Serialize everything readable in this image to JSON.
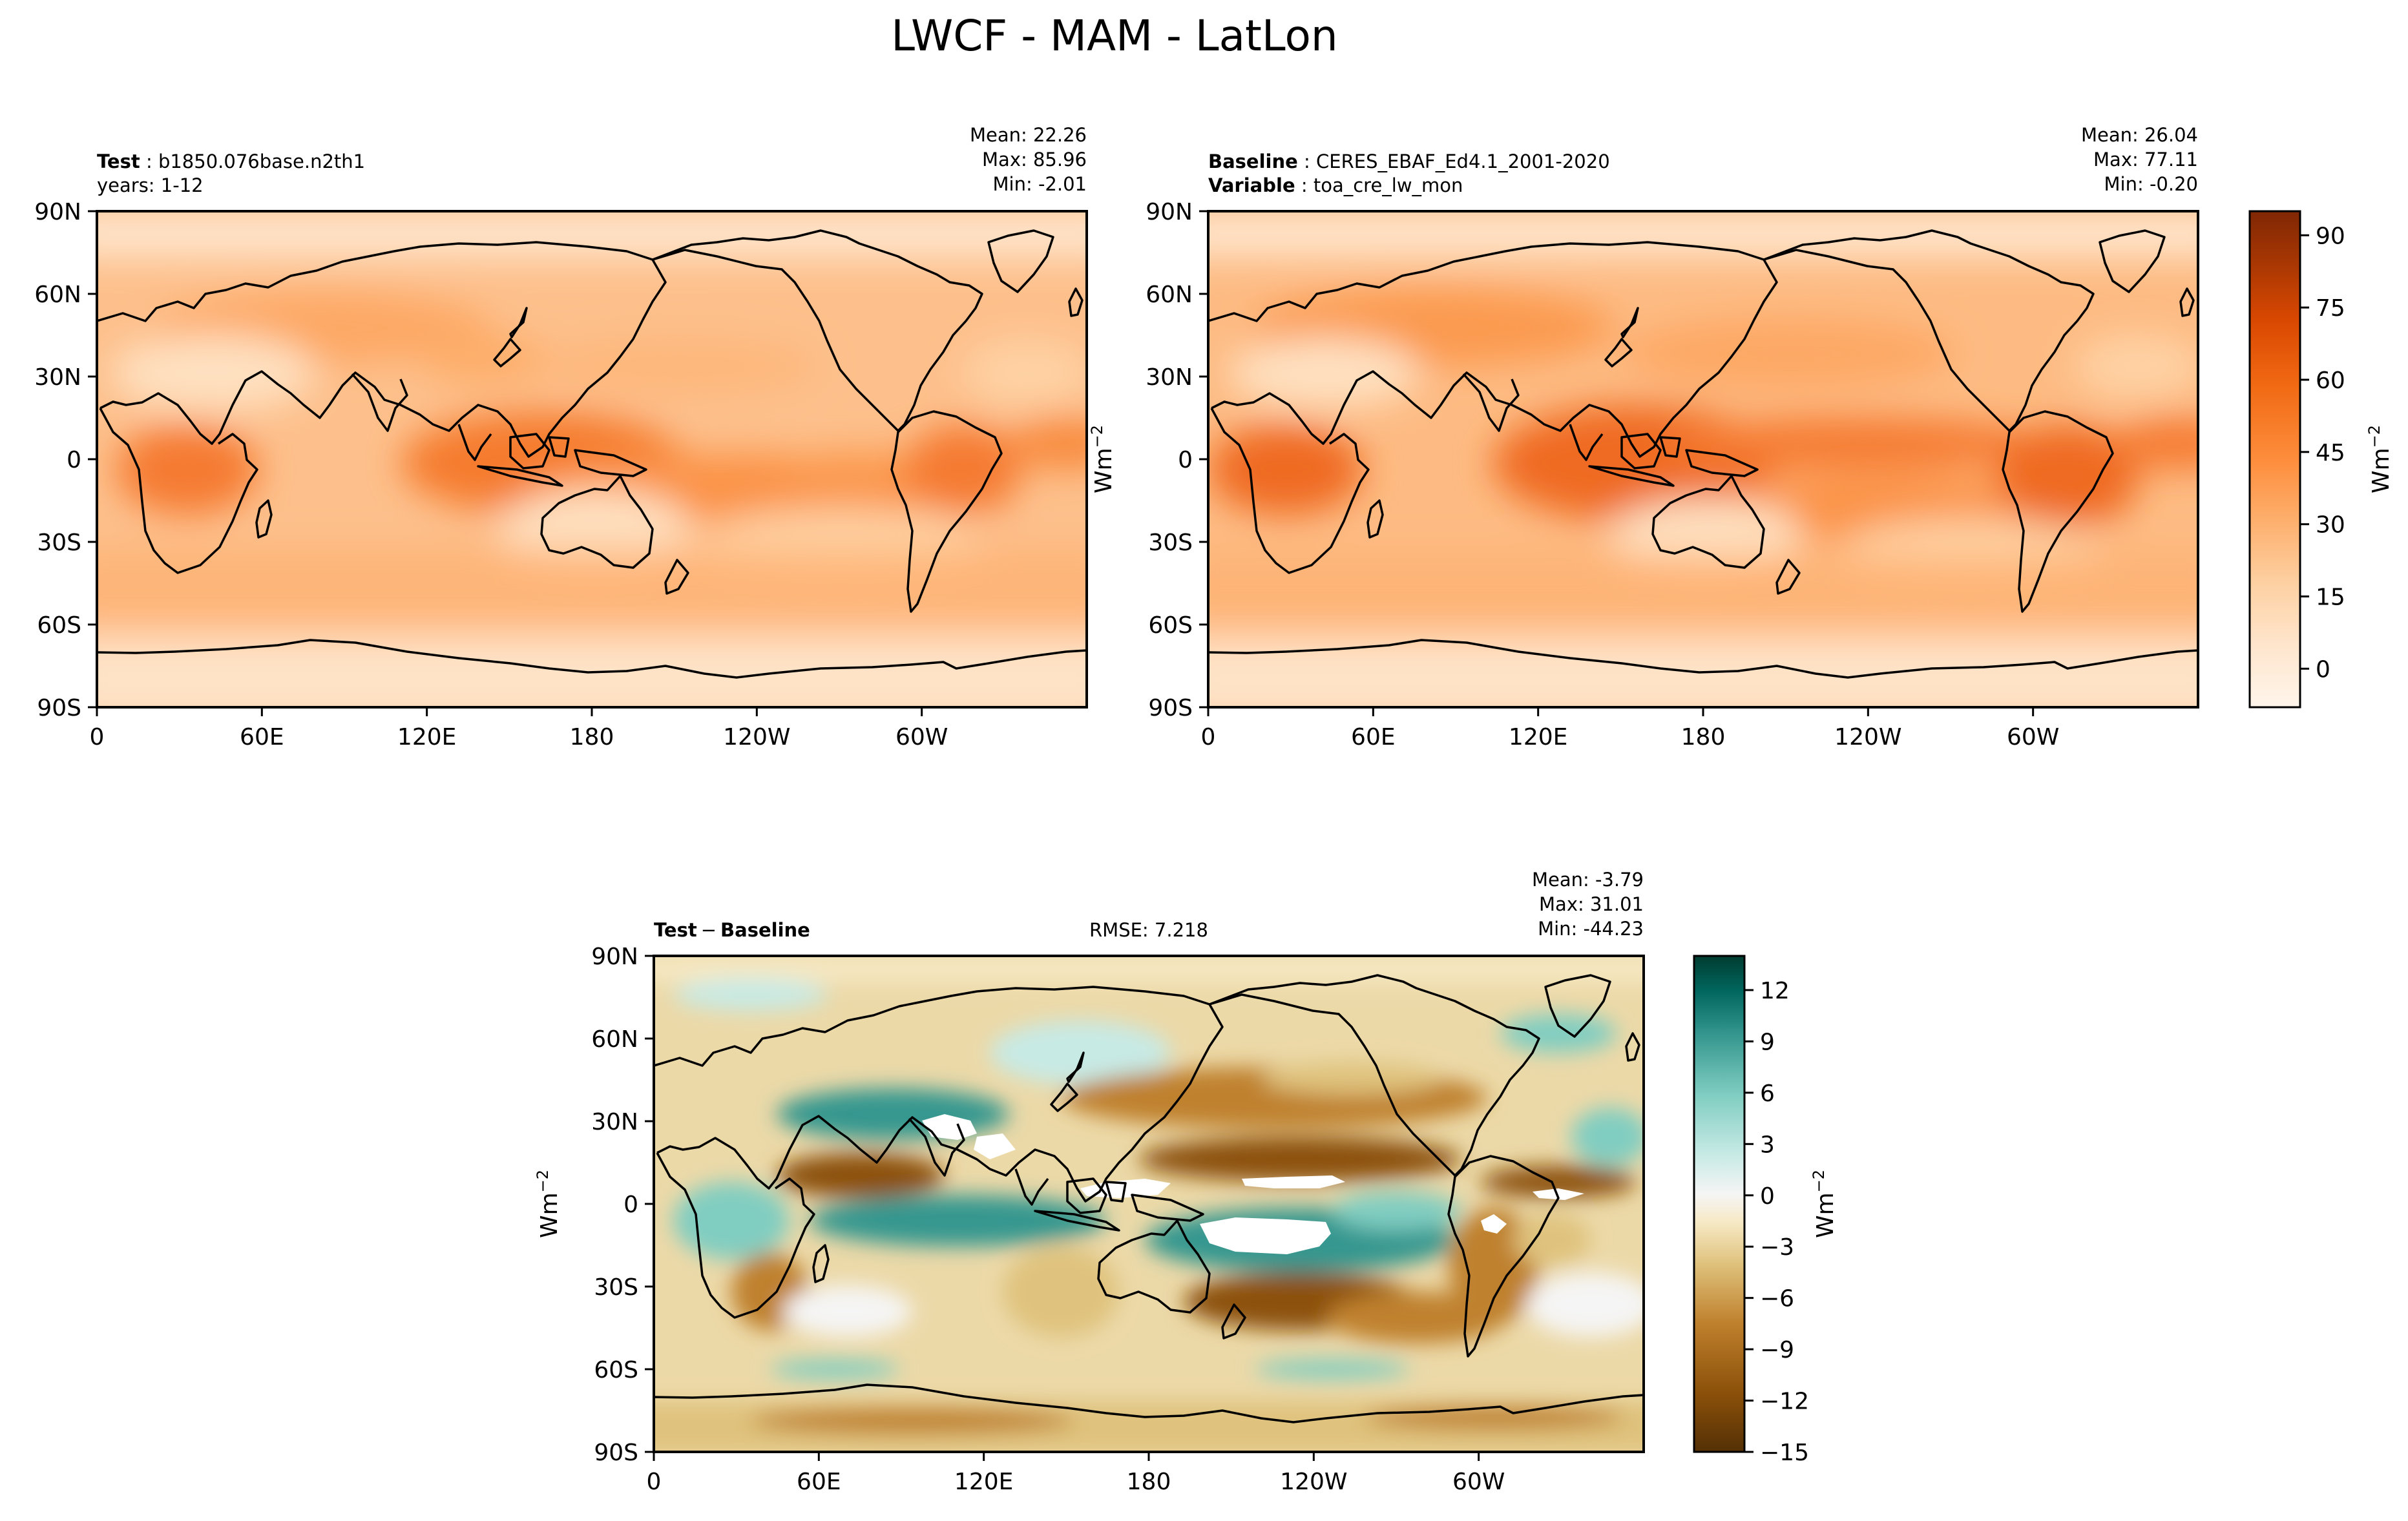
{
  "title": "LWCF - MAM - LatLon",
  "colors": {
    "test_cmap": [
      "#fff5eb",
      "#fee6ce",
      "#fdd0a2",
      "#fdae6b",
      "#fd8d3c",
      "#f16913",
      "#d94801",
      "#a63603",
      "#7f2704"
    ],
    "diff_cmap": [
      "#543005",
      "#8c510a",
      "#bf812d",
      "#dfc27d",
      "#f6e8c3",
      "#f5f5f5",
      "#c7eae5",
      "#80cdc1",
      "#35978f",
      "#01665e",
      "#003c30"
    ],
    "coast": "#000000"
  },
  "chart_data": [
    {
      "type": "heatmap",
      "id": "test",
      "header_left": [
        {
          "bold": "Test",
          "text": "b1850.076base.n2th1"
        },
        {
          "bold": "",
          "text": "years: 1-12"
        }
      ],
      "stats": [
        "Mean: 22.26",
        "Max: 85.96",
        "Min: -2.01"
      ],
      "xticks": [
        "0",
        "60E",
        "120E",
        "180",
        "120W",
        "60W"
      ],
      "yticks": [
        "90N",
        "60N",
        "30N",
        "0",
        "30S",
        "60S",
        "90S"
      ],
      "xlim": [
        0,
        360
      ],
      "ylim": [
        -90,
        90
      ],
      "value_range": [
        -8,
        95
      ],
      "ylabel": "",
      "summary": {
        "mean": 22.26,
        "max": 85.96,
        "min": -2.01
      }
    },
    {
      "type": "heatmap",
      "id": "baseline",
      "header_left": [
        {
          "bold": "Baseline",
          "text": "CERES_EBAF_Ed4.1_2001-2020"
        },
        {
          "bold": "Variable",
          "text": "toa_cre_lw_mon"
        }
      ],
      "stats": [
        "Mean: 26.04",
        "Max: 77.11",
        "Min: -0.20"
      ],
      "xticks": [
        "0",
        "60E",
        "120E",
        "180",
        "120W",
        "60W"
      ],
      "yticks": [
        "90N",
        "60N",
        "30N",
        "0",
        "30S",
        "60S",
        "90S"
      ],
      "xlim": [
        0,
        360
      ],
      "ylim": [
        -90,
        90
      ],
      "value_range": [
        -8,
        95
      ],
      "ylabel": "Wm",
      "ylabel_sup": "−2",
      "summary": {
        "mean": 26.04,
        "max": 77.11,
        "min": -0.2
      }
    },
    {
      "type": "heatmap",
      "id": "diff",
      "header_left": [
        {
          "bold": "Test",
          "text": "−",
          "bold2": "Baseline"
        }
      ],
      "header_center": "RMSE: 7.218",
      "stats": [
        "Mean: -3.79",
        "Max: 31.01",
        "Min: -44.23"
      ],
      "xticks": [
        "0",
        "60E",
        "120E",
        "180",
        "120W",
        "60W"
      ],
      "yticks": [
        "90N",
        "60N",
        "30N",
        "0",
        "30S",
        "60S",
        "90S"
      ],
      "xlim": [
        0,
        360
      ],
      "ylim": [
        -90,
        90
      ],
      "value_range": [
        -15,
        14
      ],
      "ylabel": "Wm",
      "ylabel_sup": "−2",
      "summary": {
        "mean": -3.79,
        "max": 31.01,
        "min": -44.23,
        "rmse": 7.218
      }
    }
  ],
  "colorbars": [
    {
      "id": "cb-top",
      "ticks": [
        "90",
        "75",
        "60",
        "45",
        "30",
        "15",
        "0"
      ],
      "tick_values": [
        90,
        75,
        60,
        45,
        30,
        15,
        0
      ],
      "range": [
        -8,
        95
      ],
      "label": "Wm",
      "label_sup": "−2"
    },
    {
      "id": "cb-diff",
      "ticks": [
        "12",
        "9",
        "6",
        "3",
        "0",
        "−3",
        "−6",
        "−9",
        "−12",
        "−15"
      ],
      "tick_values": [
        12,
        9,
        6,
        3,
        0,
        -3,
        -6,
        -9,
        -12,
        -15
      ],
      "range": [
        -15,
        14
      ],
      "label": "Wm",
      "label_sup": "−2"
    }
  ]
}
